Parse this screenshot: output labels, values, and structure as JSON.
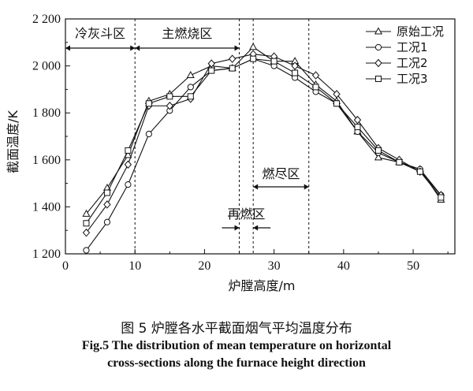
{
  "chart_data": {
    "type": "line",
    "xlabel": "炉膛高度/m",
    "ylabel": "截面温度/K",
    "xlim": [
      0,
      56
    ],
    "ylim": [
      1200,
      2200
    ],
    "xticks": [
      0,
      10,
      20,
      30,
      40,
      50
    ],
    "yticks": [
      1200,
      1400,
      1600,
      1800,
      2000,
      2200
    ],
    "ytick_labels": [
      "1 200",
      "1 400",
      "1 600",
      "1 800",
      "2 000",
      "2 200"
    ],
    "legend_position": "top-right",
    "x": [
      3,
      6,
      9,
      12,
      15,
      18,
      21,
      24,
      27,
      30,
      33,
      36,
      39,
      42,
      45,
      48,
      51,
      54
    ],
    "series": [
      {
        "name": "原始工况",
        "marker": "triangle",
        "values": [
          1370,
          1480,
          1620,
          1850,
          1880,
          1960,
          2000,
          1990,
          2080,
          2020,
          2020,
          1920,
          1850,
          1720,
          1610,
          1590,
          1560,
          1430
        ]
      },
      {
        "name": "工况1",
        "marker": "circle",
        "values": [
          1215,
          1335,
          1495,
          1710,
          1810,
          1910,
          1980,
          1990,
          2030,
          2000,
          1950,
          1890,
          1840,
          1720,
          1630,
          1590,
          1560,
          1450
        ]
      },
      {
        "name": "工况2",
        "marker": "diamond",
        "values": [
          1290,
          1410,
          1580,
          1830,
          1830,
          1860,
          2010,
          2030,
          2050,
          2040,
          2000,
          1960,
          1880,
          1770,
          1650,
          1600,
          1550,
          1450
        ]
      },
      {
        "name": "工况3",
        "marker": "square",
        "values": [
          1330,
          1460,
          1640,
          1840,
          1870,
          1870,
          1980,
          1990,
          2030,
          2020,
          1970,
          1910,
          1840,
          1740,
          1640,
          1590,
          1550,
          1440
        ]
      }
    ],
    "regions": [
      {
        "label": "冷灰斗区",
        "from": 0,
        "to": 10
      },
      {
        "label": "主燃烧区",
        "from": 10,
        "to": 25
      },
      {
        "label": "再燃区",
        "from": 25,
        "to": 27
      },
      {
        "label": "燃尽区",
        "from": 27,
        "to": 35
      }
    ],
    "divider_x": [
      10,
      25,
      27,
      35
    ]
  },
  "caption": {
    "cn": "图 5  炉膛各水平截面烟气平均温度分布",
    "en_line1": "Fig.5 The distribution of mean temperature on horizontal",
    "en_line2": "cross-sections along the furnace height direction"
  }
}
